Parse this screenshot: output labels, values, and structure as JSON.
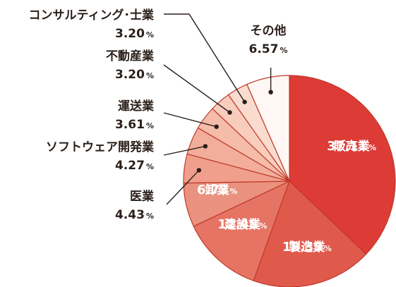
{
  "chart_data": {
    "type": "pie",
    "unit": "%",
    "slices": [
      {
        "label": "販売業",
        "value": 37.11,
        "display": "37.11",
        "color": "#dc3b36"
      },
      {
        "label": "製造業",
        "value": 18.39,
        "display": "18.39",
        "color": "#e05a4c"
      },
      {
        "label": "建設業",
        "value": 12.48,
        "display": "12.48",
        "color": "#e57464"
      },
      {
        "label": "卸業",
        "value": 6.73,
        "display": "6.73",
        "color": "#eb917f"
      },
      {
        "label": "医業",
        "value": 4.43,
        "display": "4.43",
        "color": "#ef9f8c"
      },
      {
        "label": "ソフトウェア開発業",
        "value": 4.27,
        "display": "4.27",
        "color": "#f2ae9b"
      },
      {
        "label": "運送業",
        "value": 3.61,
        "display": "3.61",
        "color": "#f5bca9"
      },
      {
        "label": "不動産業",
        "value": 3.2,
        "display": "3.20",
        "color": "#f8cdbc"
      },
      {
        "label": "コンサルティング･士業",
        "value": 3.2,
        "display": "3.20",
        "color": "#fadccf"
      },
      {
        "label": "その他",
        "value": 6.57,
        "display": "6.57",
        "color": "#fef7f3"
      }
    ]
  }
}
